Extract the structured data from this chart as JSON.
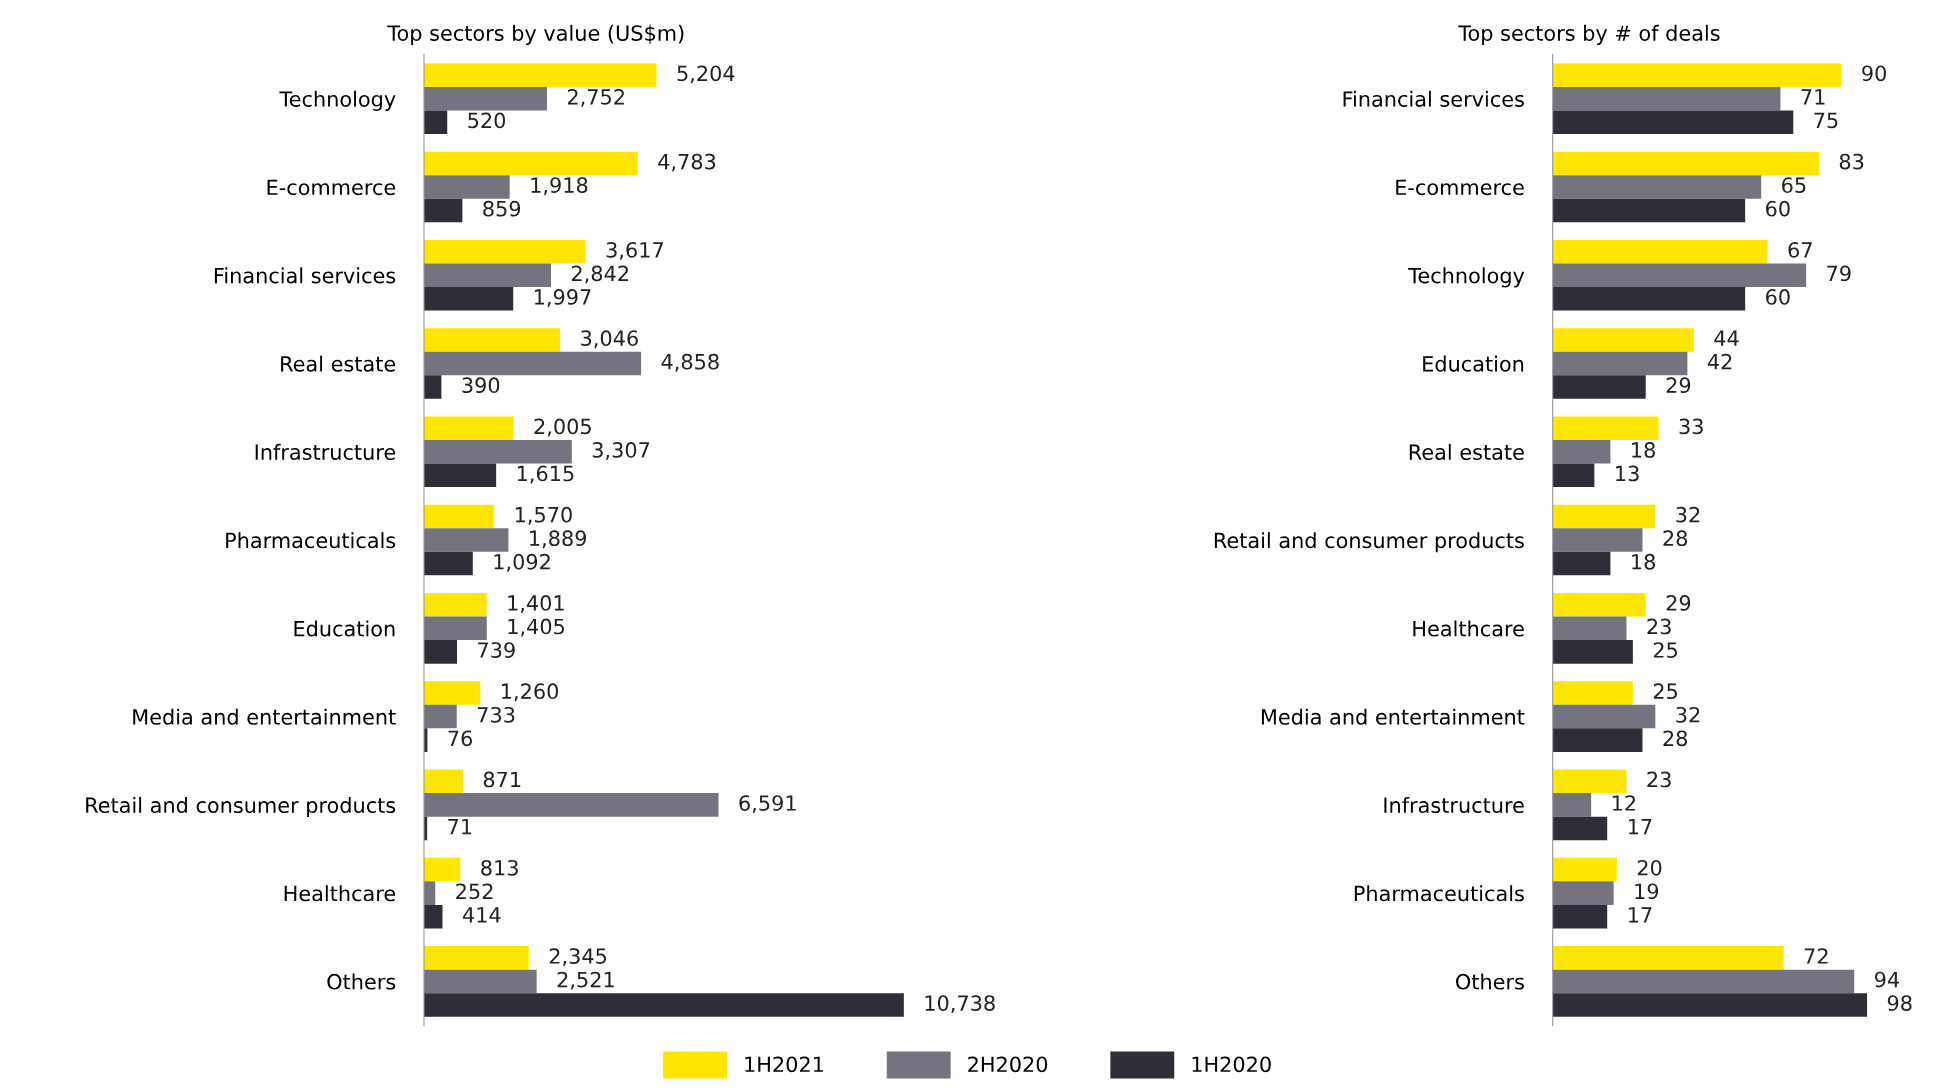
{
  "chart_data": [
    {
      "type": "bar",
      "orientation": "horizontal",
      "title": "Top sectors by value (US$m)",
      "legend": "bottom",
      "categories": [
        "Technology",
        "E-commerce",
        "Financial services",
        "Real estate",
        "Infrastructure",
        "Pharmaceuticals",
        "Education",
        "Media and entertainment",
        "Retail and consumer products",
        "Healthcare",
        "Others"
      ],
      "series": [
        {
          "name": "1H2021",
          "color": "#ffe600",
          "values": [
            5204,
            4783,
            3617,
            3046,
            2005,
            1570,
            1401,
            1260,
            871,
            813,
            2345
          ],
          "value_labels": [
            "5,204",
            "4,783",
            "3,617",
            "3,046",
            "2,005",
            "1,570",
            "1,401",
            "1,260",
            "871",
            "813",
            "2,345"
          ]
        },
        {
          "name": "2H2020",
          "color": "#747480",
          "values": [
            2752,
            1918,
            2842,
            4858,
            3307,
            1889,
            1405,
            733,
            6591,
            252,
            2521
          ],
          "value_labels": [
            "2,752",
            "1,918",
            "2,842",
            "4,858",
            "3,307",
            "1,889",
            "1,405",
            "733",
            "6,591",
            "252",
            "2,521"
          ]
        },
        {
          "name": "1H2020",
          "color": "#2e2e38",
          "values": [
            520,
            859,
            1997,
            390,
            1615,
            1092,
            739,
            76,
            71,
            414,
            10738
          ],
          "value_labels": [
            "520",
            "859",
            "1,997",
            "390",
            "1,615",
            "1,092",
            "739",
            "76",
            "71",
            "414",
            "10,738"
          ]
        }
      ]
    },
    {
      "type": "bar",
      "orientation": "horizontal",
      "title": "Top sectors by # of deals",
      "data_labels": true,
      "categories": [
        "Financial services",
        "E-commerce",
        "Technology",
        "Education",
        "Real estate",
        "Retail and consumer products",
        "Healthcare",
        "Media and entertainment",
        "Infrastructure",
        "Pharmaceuticals",
        "Others"
      ],
      "series": [
        {
          "color": "#ffe600",
          "values": [
            90,
            83,
            67,
            44,
            33,
            32,
            29,
            25,
            23,
            20,
            72
          ]
        },
        {
          "color": "#747480",
          "values": [
            71,
            65,
            79,
            42,
            18,
            28,
            23,
            32,
            12,
            19,
            94
          ]
        },
        {
          "color": "#2e2e38",
          "values": [
            75,
            60,
            60,
            29,
            13,
            18,
            25,
            28,
            17,
            17,
            98
          ]
        }
      ]
    }
  ]
}
